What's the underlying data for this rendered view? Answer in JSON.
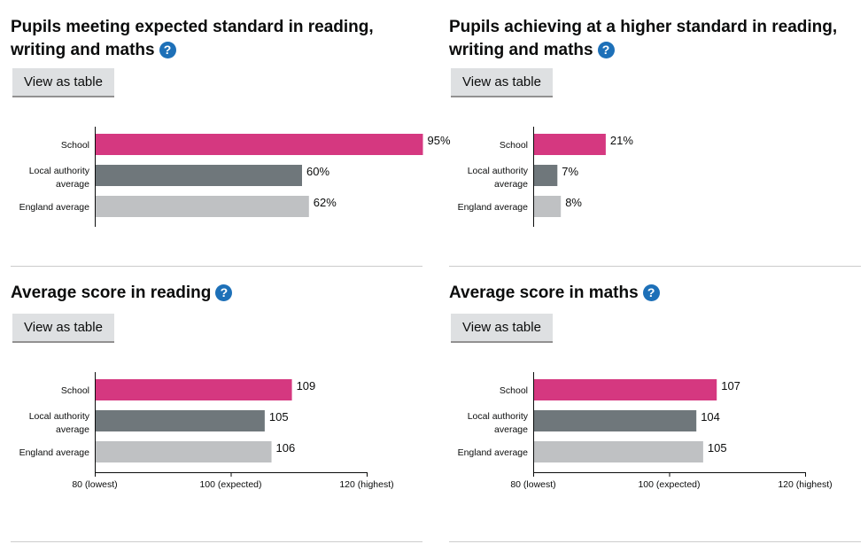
{
  "panels": [
    {
      "id": "tl",
      "title": "Pupils meeting expected standard in reading, writing and maths",
      "help_glyph": "?",
      "button_label": "View as table"
    },
    {
      "id": "tr",
      "title": "Pupils achieving at a higher standard in reading, writing and maths",
      "help_glyph": "?",
      "button_label": "View as table"
    },
    {
      "id": "bl",
      "title": "Average score in reading",
      "help_glyph": "?",
      "button_label": "View as table"
    },
    {
      "id": "br",
      "title": "Average score in maths",
      "help_glyph": "?",
      "button_label": "View as table"
    }
  ],
  "chart_data": [
    {
      "type": "bar",
      "orientation": "horizontal",
      "title": "Pupils meeting expected standard in reading, writing and maths",
      "categories": [
        [
          "School"
        ],
        [
          "Local authority",
          "average"
        ],
        [
          "England average"
        ]
      ],
      "values": [
        95,
        60,
        62
      ],
      "value_labels": [
        "95%",
        "60%",
        "62%"
      ],
      "colors": [
        "#d53880",
        "#6f777b",
        "#bfc1c3"
      ],
      "xlim": [
        0,
        100
      ],
      "axis": null
    },
    {
      "type": "bar",
      "orientation": "horizontal",
      "title": "Pupils achieving at a higher standard in reading, writing and maths",
      "categories": [
        [
          "School"
        ],
        [
          "Local authority",
          "average"
        ],
        [
          "England average"
        ]
      ],
      "values": [
        21,
        7,
        8
      ],
      "value_labels": [
        "21%",
        "7%",
        "8%"
      ],
      "colors": [
        "#d53880",
        "#6f777b",
        "#bfc1c3"
      ],
      "xlim": [
        0,
        100
      ],
      "axis": null
    },
    {
      "type": "bar",
      "orientation": "horizontal",
      "title": "Average score in reading",
      "categories": [
        [
          "School"
        ],
        [
          "Local authority",
          "average"
        ],
        [
          "England average"
        ]
      ],
      "values": [
        109,
        105,
        106
      ],
      "value_labels": [
        "109",
        "105",
        "106"
      ],
      "colors": [
        "#d53880",
        "#6f777b",
        "#bfc1c3"
      ],
      "xlim": [
        80,
        120
      ],
      "axis": {
        "ticks": [
          80,
          100,
          120
        ],
        "tick_labels": [
          "80 (lowest)",
          "100 (expected)",
          "120 (highest)"
        ]
      }
    },
    {
      "type": "bar",
      "orientation": "horizontal",
      "title": "Average score in maths",
      "categories": [
        [
          "School"
        ],
        [
          "Local authority",
          "average"
        ],
        [
          "England average"
        ]
      ],
      "values": [
        107,
        104,
        105
      ],
      "value_labels": [
        "107",
        "104",
        "105"
      ],
      "colors": [
        "#d53880",
        "#6f777b",
        "#bfc1c3"
      ],
      "xlim": [
        80,
        120
      ],
      "axis": {
        "ticks": [
          80,
          100,
          120
        ],
        "tick_labels": [
          "80 (lowest)",
          "100 (expected)",
          "120 (highest)"
        ]
      }
    }
  ]
}
